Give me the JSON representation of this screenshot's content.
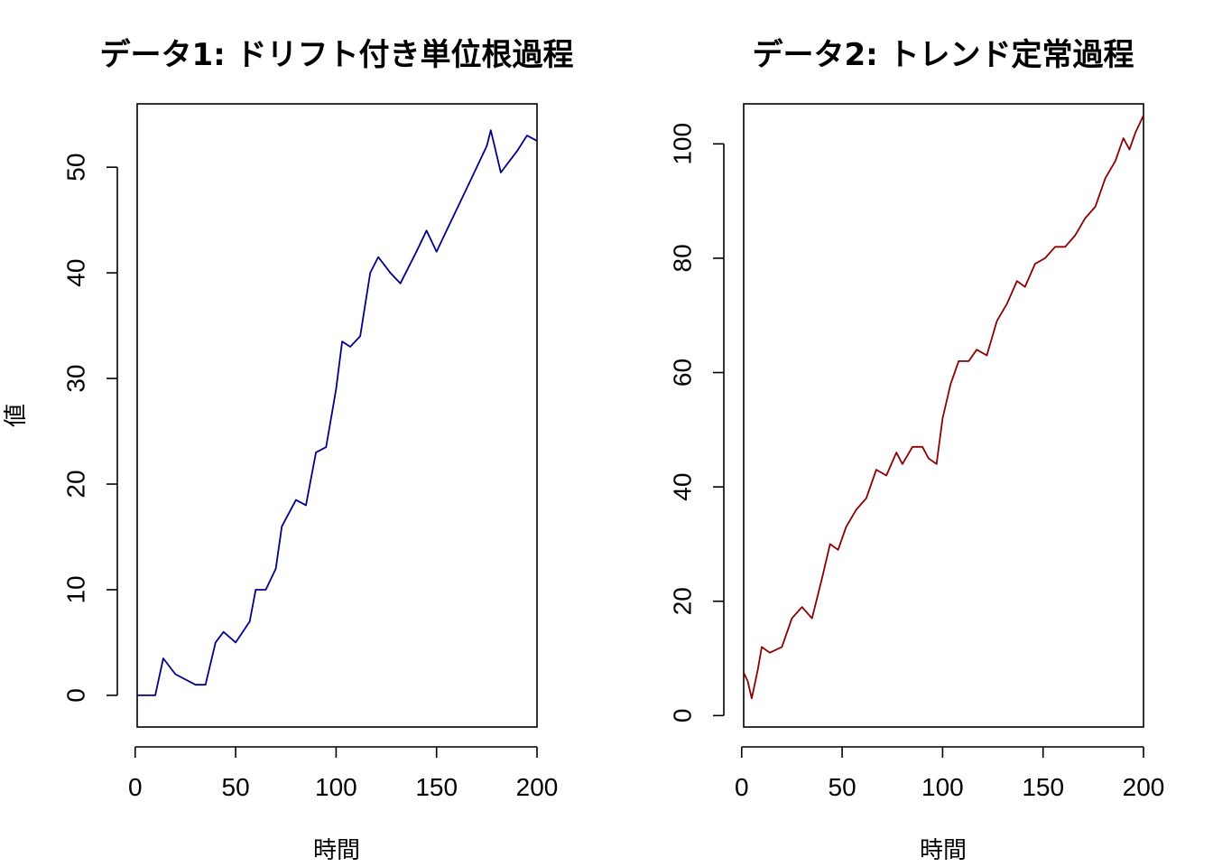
{
  "chart_data": [
    {
      "type": "line",
      "title": "データ1: ドリフト付き単位根過程",
      "xlabel": "時間",
      "ylabel": "値",
      "xlim": [
        1,
        200
      ],
      "ylim": [
        -3,
        56
      ],
      "xticks": [
        0,
        50,
        100,
        150,
        200
      ],
      "yticks": [
        0,
        10,
        20,
        30,
        40,
        50
      ],
      "grid": false,
      "line_color": "#00008B",
      "series": [
        {
          "x": [
            1,
            10,
            14,
            20,
            30,
            35,
            40,
            44,
            50,
            57,
            60,
            65,
            70,
            73,
            80,
            85,
            90,
            95,
            100,
            103,
            107,
            112,
            117,
            121,
            127,
            132,
            140,
            145,
            150,
            155,
            160,
            165,
            170,
            175,
            177,
            182,
            190,
            195,
            200
          ],
          "y": [
            0,
            0,
            3.5,
            2,
            1,
            1,
            5,
            6,
            5,
            7,
            10,
            10,
            12,
            16,
            18.5,
            18,
            23,
            23.5,
            29,
            33.5,
            33,
            34,
            40,
            41.5,
            40,
            39,
            42,
            44,
            42,
            44,
            46,
            48,
            50,
            52,
            53.5,
            49.5,
            51.5,
            53,
            52.5
          ]
        }
      ]
    },
    {
      "type": "line",
      "title": "データ2: トレンド定常過程",
      "xlabel": "時間",
      "ylabel": "",
      "xlim": [
        1,
        200
      ],
      "ylim": [
        -2,
        107
      ],
      "xticks": [
        0,
        50,
        100,
        150,
        200
      ],
      "yticks": [
        0,
        20,
        40,
        60,
        80,
        100
      ],
      "grid": false,
      "line_color": "#8B0000",
      "series": [
        {
          "x": [
            1,
            3,
            5,
            8,
            10,
            14,
            20,
            25,
            30,
            35,
            40,
            44,
            48,
            52,
            57,
            62,
            67,
            72,
            77,
            80,
            85,
            90,
            93,
            97,
            100,
            104,
            108,
            113,
            117,
            122,
            127,
            132,
            137,
            141,
            146,
            151,
            156,
            161,
            166,
            171,
            176,
            181,
            186,
            190,
            193,
            196,
            200
          ],
          "y": [
            7.5,
            6,
            3,
            8,
            12,
            11,
            12,
            17,
            19,
            17,
            24,
            30,
            29,
            33,
            36,
            38,
            43,
            42,
            46,
            44,
            47,
            47,
            45,
            44,
            52,
            58,
            62,
            62,
            64,
            63,
            69,
            72,
            76,
            75,
            79,
            80,
            82,
            82,
            84,
            87,
            89,
            94,
            97,
            101,
            99,
            102,
            105
          ]
        }
      ]
    }
  ]
}
